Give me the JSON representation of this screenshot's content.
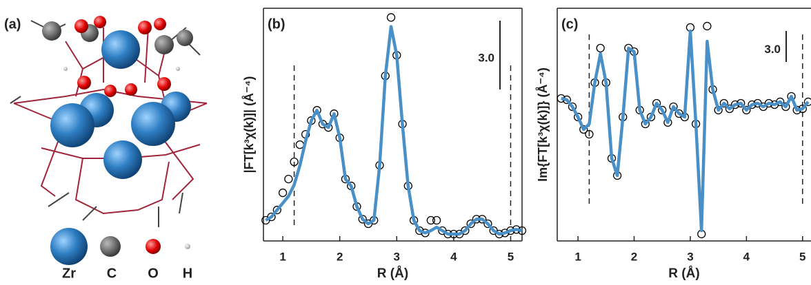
{
  "panel_a": {
    "label": "(a)",
    "legend": [
      "Zr",
      "C",
      "O",
      "H"
    ]
  },
  "chart_data": [
    {
      "type": "line",
      "label": "(b)",
      "xlabel": "R (Å)",
      "ylabel": "|FT[k³χ(k)]| (Å⁻⁴)",
      "x": [
        0.7,
        0.8,
        0.9,
        1.0,
        1.1,
        1.2,
        1.3,
        1.4,
        1.5,
        1.6,
        1.7,
        1.8,
        1.9,
        2.0,
        2.1,
        2.2,
        2.3,
        2.4,
        2.5,
        2.6,
        2.7,
        2.8,
        2.9,
        3.0,
        3.1,
        3.2,
        3.3,
        3.4,
        3.5,
        3.6,
        3.7,
        3.8,
        3.9,
        4.0,
        4.1,
        4.2,
        4.3,
        4.4,
        4.5,
        4.6,
        4.7,
        4.8,
        4.9,
        5.0,
        5.1,
        5.2
      ],
      "series": [
        {
          "marker": "circle",
          "color": "#000000",
          "values": [
            0.75,
            0.9,
            1.2,
            1.95,
            2.55,
            3.3,
            4.05,
            4.5,
            5.1,
            5.55,
            4.95,
            4.8,
            5.4,
            4.35,
            2.55,
            2.25,
            1.35,
            0.8,
            0.6,
            0.75,
            3.15,
            7.05,
            9.6,
            7.95,
            4.95,
            2.25,
            0.75,
            0.3,
            0.2,
            0.75,
            0.75,
            0.3,
            0.15,
            0.15,
            0.15,
            0.3,
            0.6,
            0.8,
            0.8,
            0.6,
            0.3,
            0.15,
            0.2,
            0.3,
            0.35,
            0.3
          ]
        },
        {
          "marker": "line",
          "color": "#4a90c8",
          "values": [
            0.75,
            0.9,
            1.2,
            1.5,
            1.8,
            2.3,
            3.15,
            4.2,
            5.1,
            5.55,
            4.95,
            4.8,
            5.4,
            4.35,
            2.55,
            2.25,
            1.35,
            0.8,
            0.6,
            0.75,
            3.15,
            7.05,
            9.2,
            7.95,
            4.95,
            2.25,
            0.75,
            0.3,
            0.2,
            0.3,
            0.45,
            0.3,
            0.15,
            0.15,
            0.15,
            0.3,
            0.6,
            0.8,
            0.8,
            0.6,
            0.3,
            0.15,
            0.2,
            0.3,
            0.35,
            0.3
          ]
        }
      ],
      "xlim": [
        0.66,
        5.2
      ],
      "ylim": [
        -0.15,
        10
      ],
      "xticks": [
        1,
        2,
        3,
        4,
        5
      ],
      "fit_range": [
        1.2,
        5.0
      ],
      "scale_bar": {
        "value": 3,
        "label": "3.0"
      }
    },
    {
      "type": "line",
      "label": "(c)",
      "xlabel": "R (Å)",
      "ylabel": "Im{FT[k³χ(k)]} (Å⁻⁴)",
      "x": [
        0.7,
        0.8,
        0.9,
        1.0,
        1.1,
        1.2,
        1.3,
        1.4,
        1.5,
        1.6,
        1.7,
        1.8,
        1.9,
        2.0,
        2.1,
        2.2,
        2.3,
        2.4,
        2.5,
        2.6,
        2.7,
        2.8,
        2.9,
        3.0,
        3.1,
        3.2,
        3.3,
        3.4,
        3.5,
        3.6,
        3.7,
        3.8,
        3.9,
        4.0,
        4.1,
        4.2,
        4.3,
        4.4,
        4.5,
        4.6,
        4.7,
        4.8,
        4.9,
        5.0,
        5.1
      ],
      "series": [
        {
          "marker": "circle",
          "color": "#000000",
          "values": [
            0.6,
            0.47,
            -0.2,
            -1.2,
            -2.4,
            -2.87,
            2.13,
            5.47,
            2.13,
            -5.2,
            -6.87,
            -1.2,
            5.47,
            5.13,
            -0.53,
            -1.87,
            -1.2,
            0.13,
            -0.53,
            -1.73,
            -0.2,
            -0.87,
            -1.2,
            7.47,
            -1.87,
            -12.53,
            7.6,
            1.47,
            -0.53,
            0.13,
            -0.4,
            0,
            0.13,
            -0.53,
            0,
            0.13,
            -0.2,
            0.13,
            0,
            0.27,
            -0.2,
            0.8,
            -0.53,
            -0.4,
            0.27
          ]
        },
        {
          "marker": "line",
          "color": "#4a90c8",
          "values": [
            0.6,
            0.47,
            -0.2,
            -1.2,
            -2.4,
            -1.87,
            2.13,
            4.93,
            2.13,
            -5.2,
            -6.87,
            -1.2,
            5.47,
            5.13,
            -0.53,
            -1.87,
            -1.2,
            0.13,
            -0.53,
            -1.73,
            -0.2,
            -0.87,
            -1.2,
            7.13,
            -1.87,
            -12.2,
            6.13,
            1.47,
            -0.53,
            0.13,
            -0.4,
            0,
            0.13,
            -0.53,
            0,
            0.13,
            -0.2,
            0.13,
            0,
            0.27,
            -0.2,
            0.8,
            -0.53,
            -0.4,
            0.27
          ]
        }
      ],
      "xlim": [
        0.63,
        5.15
      ],
      "ylim": [
        -13.2,
        9.33
      ],
      "xticks": [
        1,
        2,
        3,
        4,
        5
      ],
      "fit_range": [
        1.2,
        5.0
      ],
      "scale_bar": {
        "value": 3,
        "label": "3.0"
      }
    }
  ]
}
